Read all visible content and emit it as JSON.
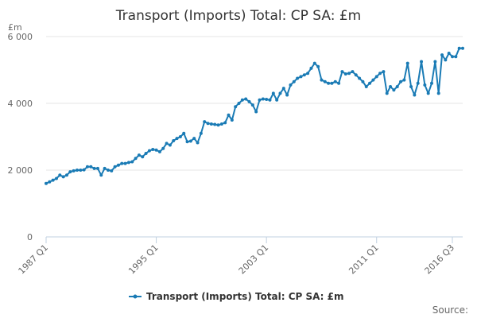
{
  "chart_data": {
    "type": "line",
    "title": "Transport (Imports) Total: CP SA: £m",
    "ylabel": "£m",
    "ylim": [
      0,
      6000
    ],
    "yticks": [
      {
        "value": 0,
        "label": "0"
      },
      {
        "value": 2000,
        "label": "2 000"
      },
      {
        "value": 4000,
        "label": "4 000"
      },
      {
        "value": 6000,
        "label": "6 000"
      }
    ],
    "xticks": [
      {
        "index": 0,
        "label": "1987 Q1"
      },
      {
        "index": 32,
        "label": "1995 Q1"
      },
      {
        "index": 64,
        "label": "2003 Q1"
      },
      {
        "index": 96,
        "label": "2011 Q1"
      },
      {
        "index": 118,
        "label": "2016 Q3"
      }
    ],
    "grid": true,
    "legend_position": "bottom",
    "series": [
      {
        "name": "Transport (Imports) Total: CP SA: £m",
        "color": "#1a7bb5",
        "values": [
          1600,
          1650,
          1700,
          1750,
          1850,
          1800,
          1850,
          1950,
          1980,
          2000,
          2000,
          2010,
          2100,
          2100,
          2050,
          2050,
          1850,
          2050,
          2000,
          1980,
          2100,
          2150,
          2200,
          2200,
          2230,
          2250,
          2350,
          2450,
          2400,
          2500,
          2580,
          2620,
          2600,
          2550,
          2650,
          2800,
          2750,
          2880,
          2950,
          3000,
          3100,
          2850,
          2870,
          2950,
          2820,
          3100,
          3450,
          3400,
          3380,
          3370,
          3350,
          3380,
          3420,
          3650,
          3500,
          3900,
          4000,
          4100,
          4130,
          4050,
          3950,
          3750,
          4100,
          4130,
          4120,
          4100,
          4300,
          4100,
          4300,
          4450,
          4250,
          4550,
          4650,
          4750,
          4800,
          4850,
          4900,
          5050,
          5200,
          5100,
          4700,
          4650,
          4600,
          4600,
          4650,
          4600,
          4950,
          4880,
          4900,
          4950,
          4850,
          4750,
          4650,
          4500,
          4600,
          4700,
          4800,
          4900,
          4950,
          4300,
          4500,
          4400,
          4500,
          4650,
          4700,
          5200,
          4500,
          4250,
          4600,
          5250,
          4550,
          4300,
          4600,
          5250,
          4300,
          5450,
          5300,
          5500,
          5400,
          5400,
          5650,
          5650
        ]
      }
    ]
  },
  "source_label": "Source:"
}
